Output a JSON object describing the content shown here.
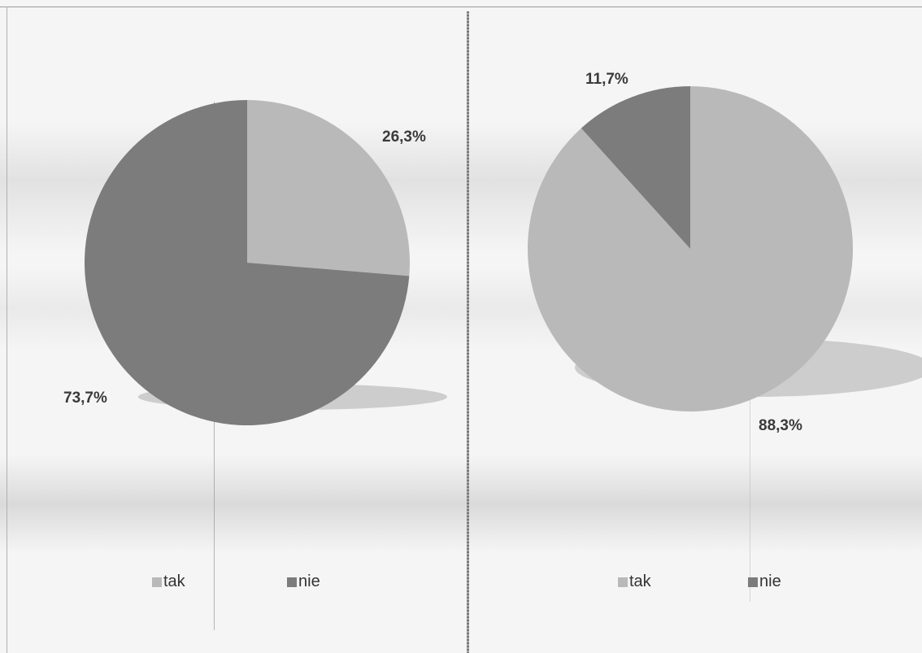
{
  "chart_data": [
    {
      "type": "pie",
      "categories": [
        "tak",
        "nie"
      ],
      "values": [
        26.3,
        73.7
      ],
      "data_labels": [
        "26,3%",
        "73,7%"
      ],
      "colors": [
        "#b9b9b9",
        "#7c7c7c"
      ],
      "legend": [
        "tak",
        "nie"
      ],
      "legend_position": "bottom"
    },
    {
      "type": "pie",
      "categories": [
        "tak",
        "nie"
      ],
      "values": [
        88.3,
        11.7
      ],
      "data_labels": [
        "88,3%",
        "11,7%"
      ],
      "colors": [
        "#b9b9b9",
        "#7c7c7c"
      ],
      "legend": [
        "tak",
        "nie"
      ],
      "legend_position": "bottom"
    }
  ]
}
